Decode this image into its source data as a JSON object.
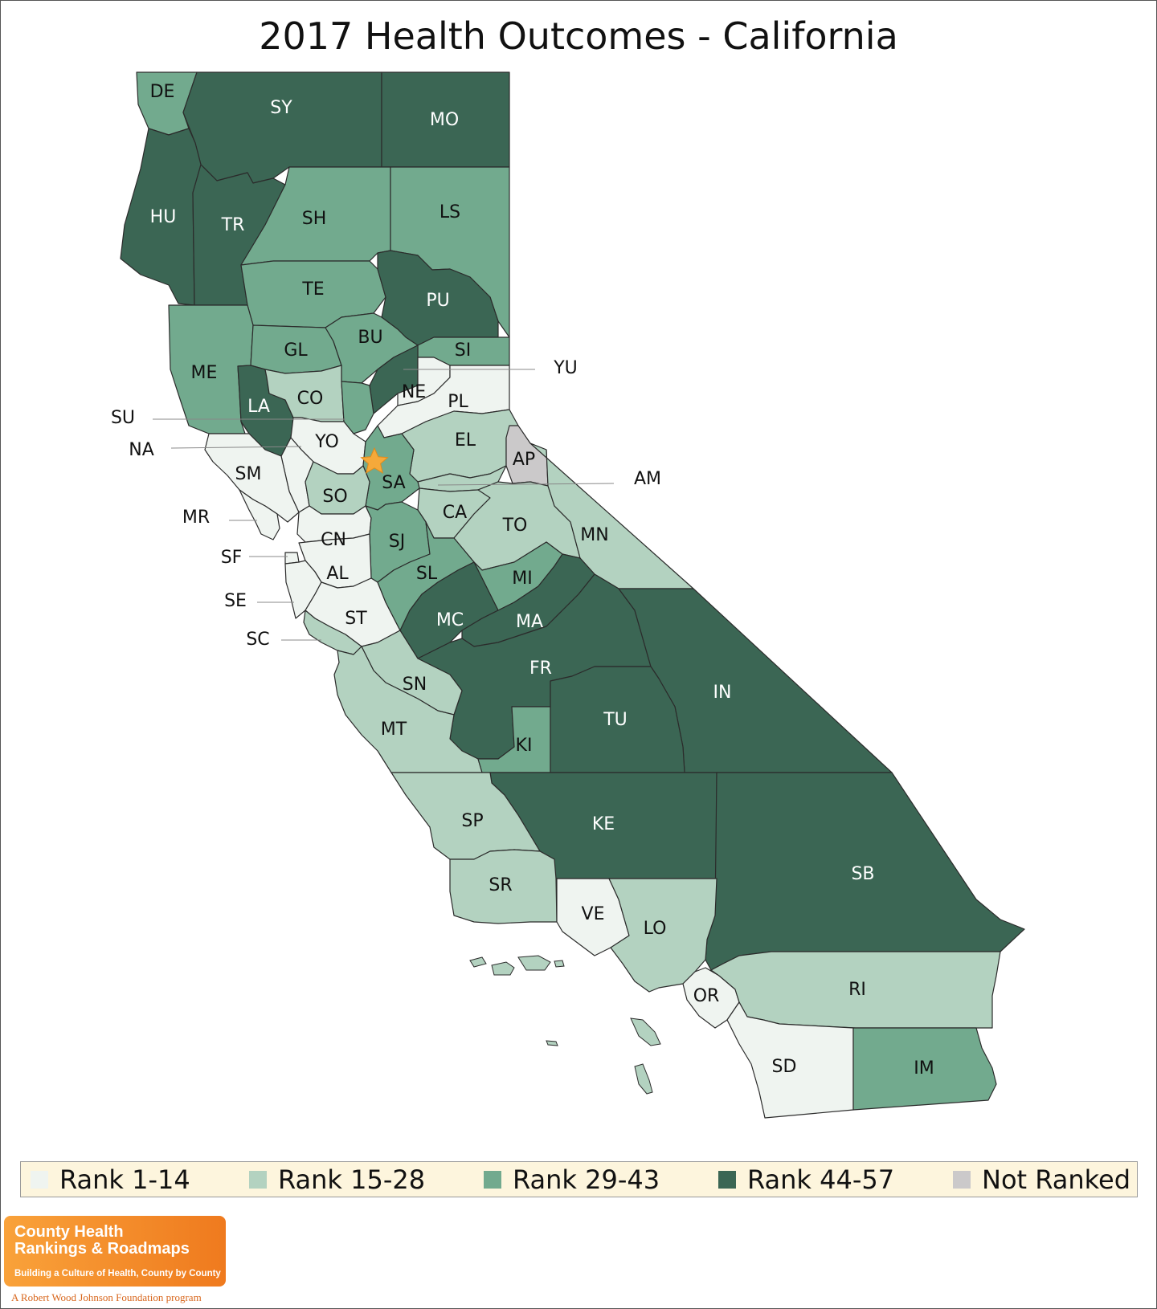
{
  "title": "2017 Health Outcomes - California",
  "colors": {
    "rank_1_14": "#eff4f0",
    "rank_15_28": "#b3d2c0",
    "rank_29_43": "#72aa8e",
    "rank_44_57": "#3b6654",
    "not_ranked": "#cbc9ca",
    "star": "#f5a93a"
  },
  "legend": [
    {
      "label": "Rank 1-14",
      "color": "#eff4f0"
    },
    {
      "label": "Rank 15-28",
      "color": "#b3d2c0"
    },
    {
      "label": "Rank 29-43",
      "color": "#72aa8e"
    },
    {
      "label": "Rank 44-57",
      "color": "#3b6654"
    },
    {
      "label": "Not Ranked",
      "color": "#cbc9ca"
    }
  ],
  "counties": [
    {
      "code": "DE",
      "rank_group": "29-43"
    },
    {
      "code": "SY",
      "rank_group": "44-57"
    },
    {
      "code": "MO",
      "rank_group": "44-57"
    },
    {
      "code": "HU",
      "rank_group": "44-57"
    },
    {
      "code": "TR",
      "rank_group": "44-57"
    },
    {
      "code": "SH",
      "rank_group": "29-43"
    },
    {
      "code": "LS",
      "rank_group": "29-43"
    },
    {
      "code": "TE",
      "rank_group": "29-43"
    },
    {
      "code": "PU",
      "rank_group": "44-57"
    },
    {
      "code": "ME",
      "rank_group": "29-43"
    },
    {
      "code": "GL",
      "rank_group": "29-43"
    },
    {
      "code": "BU",
      "rank_group": "29-43"
    },
    {
      "code": "SI",
      "rank_group": "29-43"
    },
    {
      "code": "YU",
      "rank_group": "44-57"
    },
    {
      "code": "LA",
      "rank_group": "44-57"
    },
    {
      "code": "CO",
      "rank_group": "15-28"
    },
    {
      "code": "NE",
      "rank_group": "1-14"
    },
    {
      "code": "PL",
      "rank_group": "1-14"
    },
    {
      "code": "SU",
      "rank_group": "29-43"
    },
    {
      "code": "YO",
      "rank_group": "1-14"
    },
    {
      "code": "NA",
      "rank_group": "1-14"
    },
    {
      "code": "EL",
      "rank_group": "15-28"
    },
    {
      "code": "AP",
      "rank_group": "Not Ranked"
    },
    {
      "code": "AM",
      "rank_group": "15-28"
    },
    {
      "code": "SM",
      "rank_group": "1-14"
    },
    {
      "code": "SA",
      "rank_group": "29-43"
    },
    {
      "code": "SO",
      "rank_group": "15-28"
    },
    {
      "code": "CA",
      "rank_group": "15-28"
    },
    {
      "code": "TO",
      "rank_group": "15-28"
    },
    {
      "code": "MR",
      "rank_group": "1-14"
    },
    {
      "code": "CN",
      "rank_group": "1-14"
    },
    {
      "code": "SJ",
      "rank_group": "29-43"
    },
    {
      "code": "MN",
      "rank_group": "15-28"
    },
    {
      "code": "SF",
      "rank_group": "1-14"
    },
    {
      "code": "AL",
      "rank_group": "1-14"
    },
    {
      "code": "SL",
      "rank_group": "29-43"
    },
    {
      "code": "MI",
      "rank_group": "29-43"
    },
    {
      "code": "SE",
      "rank_group": "1-14"
    },
    {
      "code": "ST",
      "rank_group": "1-14"
    },
    {
      "code": "MC",
      "rank_group": "44-57"
    },
    {
      "code": "MA",
      "rank_group": "44-57"
    },
    {
      "code": "SC",
      "rank_group": "15-28"
    },
    {
      "code": "FR",
      "rank_group": "44-57"
    },
    {
      "code": "IN",
      "rank_group": "44-57"
    },
    {
      "code": "SN",
      "rank_group": "15-28"
    },
    {
      "code": "MT",
      "rank_group": "15-28"
    },
    {
      "code": "TU",
      "rank_group": "44-57"
    },
    {
      "code": "KI",
      "rank_group": "29-43"
    },
    {
      "code": "KE",
      "rank_group": "44-57"
    },
    {
      "code": "SP",
      "rank_group": "15-28"
    },
    {
      "code": "SB",
      "rank_group": "44-57"
    },
    {
      "code": "SR",
      "rank_group": "15-28"
    },
    {
      "code": "VE",
      "rank_group": "1-14"
    },
    {
      "code": "LO",
      "rank_group": "15-28"
    },
    {
      "code": "OR",
      "rank_group": "1-14"
    },
    {
      "code": "RI",
      "rank_group": "15-28"
    },
    {
      "code": "SD",
      "rank_group": "1-14"
    },
    {
      "code": "IM",
      "rank_group": "29-43"
    }
  ],
  "logo": {
    "line1": "County Health",
    "line2": "Rankings & Roadmaps",
    "tagline": "Building a Culture of Health, County by County"
  },
  "footer": "A Robert Wood Johnson Foundation program"
}
